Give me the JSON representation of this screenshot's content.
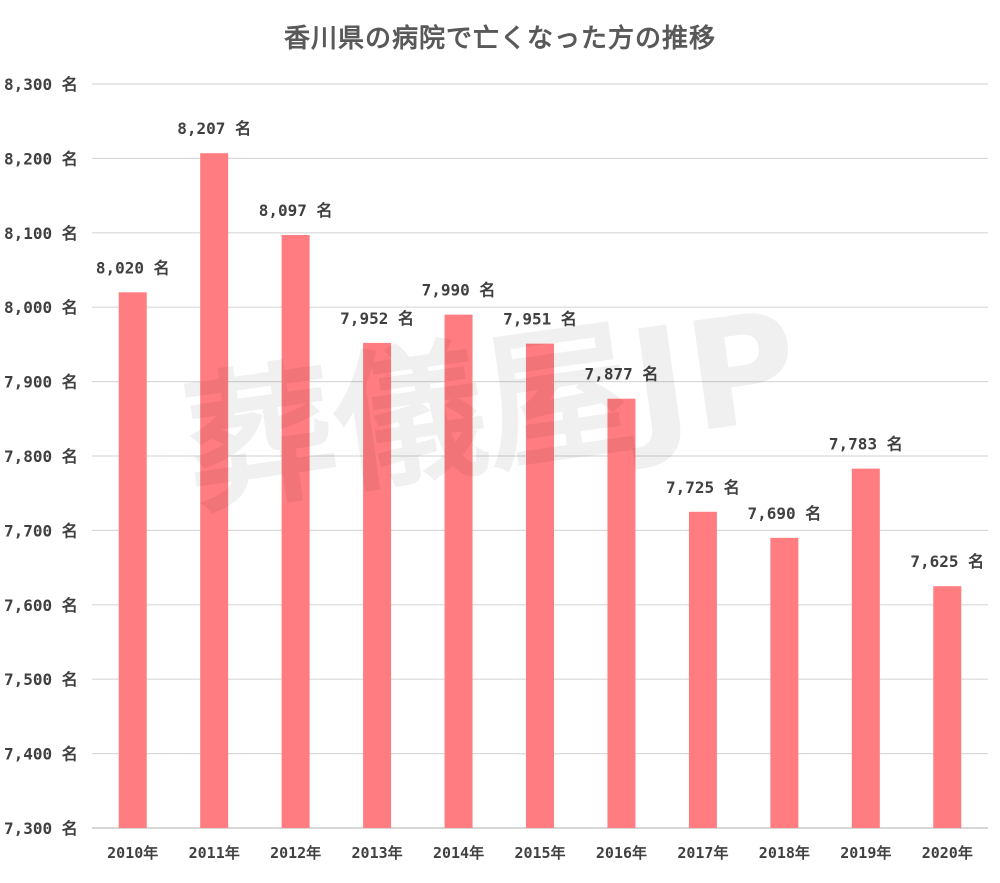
{
  "chart_data": {
    "type": "bar",
    "title": "香川県の病院で亡くなった方の推移",
    "xlabel": "",
    "ylabel": "",
    "categories": [
      "2010年",
      "2011年",
      "2012年",
      "2013年",
      "2014年",
      "2015年",
      "2016年",
      "2017年",
      "2018年",
      "2019年",
      "2020年"
    ],
    "values": [
      8020,
      8207,
      8097,
      7952,
      7990,
      7951,
      7877,
      7725,
      7690,
      7783,
      7625
    ],
    "data_labels": [
      "8,020 名",
      "8,207 名",
      "8,097 名",
      "7,952 名",
      "7,990 名",
      "7,951 名",
      "7,877 名",
      "7,725 名",
      "7,690 名",
      "7,783 名",
      "7,625 名"
    ],
    "ylim": [
      7300,
      8300
    ],
    "y_ticks": [
      7300,
      7400,
      7500,
      7600,
      7700,
      7800,
      7900,
      8000,
      8100,
      8200,
      8300
    ],
    "y_tick_labels": [
      "7,300 名",
      "7,400 名",
      "7,500 名",
      "7,600 名",
      "7,700 名",
      "7,800 名",
      "7,900 名",
      "8,000 名",
      "8,100 名",
      "8,200 名",
      "8,300 名"
    ],
    "grid": true,
    "legend": "none",
    "bar_color": "#ff7c80",
    "watermark": "葬儀屋JP"
  }
}
